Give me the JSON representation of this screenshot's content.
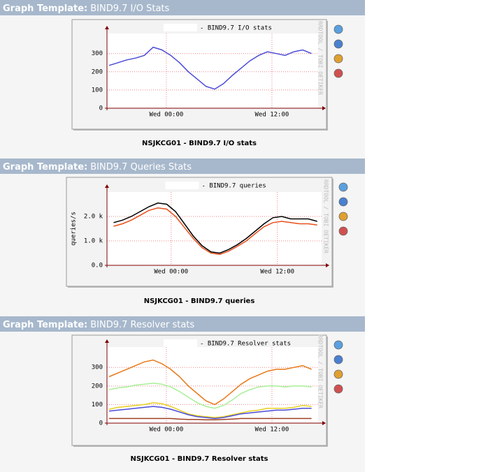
{
  "sections": [
    {
      "header_label": "Graph Template:",
      "template": "BIND9.7 I/O Stats",
      "caption": "NSJKCG01 - BIND9.7 I/O stats",
      "chart": {
        "type": "line",
        "title": "- BIND9.7 I/O stats",
        "watermark": "RRDTOOL / TOBI OETIKER",
        "x": [
          -6.5,
          -5.5,
          -4.5,
          -3.5,
          -2.5,
          -1.5,
          -0.5,
          0.5,
          1.5,
          2.5,
          3.5,
          4.5,
          5.5,
          6.5,
          7.5,
          8.5,
          9.5,
          10.5,
          11.5,
          12.5,
          13.5,
          14.5,
          15.5,
          16.5
        ],
        "xlim": [
          -6.75,
          17.25
        ],
        "xticks": [
          {
            "value": 0,
            "label": "Wed 00:00"
          },
          {
            "value": 12,
            "label": "Wed 12:00"
          }
        ],
        "ylim": [
          0,
          410
        ],
        "yticks": [
          0,
          100,
          200,
          300
        ],
        "grid": true,
        "series": [
          {
            "color": "#4c4cd8",
            "values": [
              235,
              250,
              265,
              275,
              290,
              335,
              320,
              290,
              250,
              200,
              160,
              120,
              105,
              135,
              180,
              220,
              260,
              290,
              310,
              300,
              290,
              310,
              320,
              300
            ]
          }
        ]
      }
    },
    {
      "header_label": "Graph Template:",
      "template": "BIND9.7 Queries Stats",
      "caption": "NSJKCG01 - BIND9.7 queries",
      "chart": {
        "type": "line",
        "title": "- BIND9.7 queries",
        "watermark": "RRDTOOL / TOBI OETIKER",
        "ylabel": "queries/s",
        "x": [
          -6.5,
          -5.5,
          -4.5,
          -3.5,
          -2.5,
          -1.5,
          -0.5,
          0.5,
          1.5,
          2.5,
          3.5,
          4.5,
          5.5,
          6.5,
          7.5,
          8.5,
          9.5,
          10.5,
          11.5,
          12.5,
          13.5,
          14.5,
          15.5,
          16.5
        ],
        "xlim": [
          -7.25,
          17
        ],
        "xticks": [
          {
            "value": 0,
            "label": "Wed 00:00"
          },
          {
            "value": 12,
            "label": "Wed 12:00"
          }
        ],
        "ylim": [
          0,
          3000
        ],
        "yticks": [
          {
            "value": 0,
            "label": "0.0"
          },
          {
            "value": 1000,
            "label": "1.0 k"
          },
          {
            "value": 2000,
            "label": "2.0 k"
          }
        ],
        "grid": true,
        "series": [
          {
            "color": "#000000",
            "values": [
              1750,
              1850,
              2000,
              2200,
              2400,
              2550,
              2500,
              2200,
              1700,
              1200,
              800,
              550,
              500,
              650,
              850,
              1100,
              1400,
              1700,
              1950,
              2000,
              1900,
              1900,
              1900,
              1800
            ]
          },
          {
            "color": "#e8501c",
            "values": [
              1600,
              1700,
              1850,
              2050,
              2250,
              2350,
              2300,
              2000,
              1550,
              1100,
              720,
              500,
              450,
              580,
              780,
              1000,
              1300,
              1580,
              1750,
              1800,
              1750,
              1700,
              1700,
              1650
            ]
          }
        ]
      }
    },
    {
      "header_label": "Graph Template:",
      "template": "BIND9.7 Resolver stats",
      "caption": "NSJKCG01 - BIND9.7 Resolver stats",
      "chart": {
        "type": "line",
        "title": "- BIND9.7 Resolver stats",
        "watermark": "RRDTOOL / TOBI OETIKER",
        "x": [
          -6.5,
          -5.5,
          -4.5,
          -3.5,
          -2.5,
          -1.5,
          -0.5,
          0.5,
          1.5,
          2.5,
          3.5,
          4.5,
          5.5,
          6.5,
          7.5,
          8.5,
          9.5,
          10.5,
          11.5,
          12.5,
          13.5,
          14.5,
          15.5,
          16.5
        ],
        "xlim": [
          -6.75,
          17.25
        ],
        "xticks": [
          {
            "value": 0,
            "label": "Wed 00:00"
          },
          {
            "value": 12,
            "label": "Wed 12:00"
          }
        ],
        "ylim": [
          0,
          410
        ],
        "yticks": [
          0,
          100,
          200,
          300
        ],
        "grid": true,
        "series": [
          {
            "color": "#e87818",
            "values": [
              250,
              270,
              290,
              310,
              330,
              340,
              320,
              290,
              250,
              200,
              160,
              120,
              100,
              130,
              170,
              210,
              240,
              260,
              280,
              290,
              290,
              300,
              310,
              290
            ]
          },
          {
            "color": "#a8f098",
            "values": [
              180,
              190,
              195,
              205,
              210,
              215,
              210,
              195,
              170,
              140,
              110,
              90,
              80,
              95,
              125,
              160,
              180,
              195,
              200,
              200,
              195,
              200,
              200,
              195
            ]
          },
          {
            "color": "#e8d020",
            "values": [
              75,
              85,
              90,
              95,
              100,
              110,
              105,
              90,
              70,
              50,
              40,
              35,
              30,
              35,
              45,
              55,
              65,
              70,
              80,
              80,
              80,
              85,
              95,
              90
            ]
          },
          {
            "color": "#4c4cd8",
            "values": [
              65,
              70,
              75,
              80,
              85,
              90,
              85,
              75,
              60,
              45,
              35,
              30,
              25,
              30,
              40,
              50,
              55,
              60,
              65,
              70,
              70,
              75,
              80,
              80
            ]
          },
          {
            "color": "#a04020",
            "values": [
              25,
              25,
              25,
              25,
              25,
              25,
              25,
              25,
              22,
              20,
              20,
              18,
              18,
              20,
              22,
              25,
              25,
              25,
              25,
              25,
              25,
              25,
              25,
              25
            ]
          }
        ]
      }
    }
  ]
}
